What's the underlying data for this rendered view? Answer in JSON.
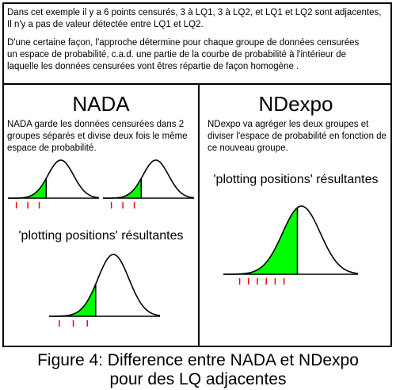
{
  "intro": {
    "line1": "Dans cet exemple il y a 6 points censurés, 3 à LQ1, 3 à LQ2, et LQ1 et LQ2 sont adjacentes,",
    "line2": "Il n'y a pas de valeur détectée entre LQ1 et LQ2.",
    "line3": "D'une certaine façon, l'approche détermine pour chaque groupe de données censurées",
    "line4": "un espace de probabilité, c.a.d. une partie de la courbe de probabilité à l'intérieur de",
    "line5": "laquelle les données censurées vont êtres répartie de façon homogène ."
  },
  "nada": {
    "title": "NADA",
    "desc1": "NADA garde les données censurées dans 2",
    "desc2": "groupes séparés et divise deux fois le même",
    "desc3": "espace de probabilité.",
    "result_label": "'plotting positions' résultantes"
  },
  "ndexpo": {
    "title": "NDexpo",
    "desc1": "NDexpo va agréger les deux groupes et",
    "desc2": "diviser l'espace de probabilité en fonction de",
    "desc3": "ce nouveau groupe.",
    "result_label": "'plotting positions' résultantes"
  },
  "caption": {
    "line1": "Figure 4: Difference entre NADA et NDexpo",
    "line2": "pour des LQ adjacentes"
  },
  "colors": {
    "fill": "#00ff00",
    "tick": "#ff0000",
    "stroke": "#000000"
  },
  "curves": [
    {
      "id": "nada-group-1",
      "ticks": 3,
      "fill_fraction": 0.42
    },
    {
      "id": "nada-group-2",
      "ticks": 3,
      "fill_fraction": 0.42
    },
    {
      "id": "nada-result",
      "ticks": 3,
      "fill_fraction": 0.42
    },
    {
      "id": "ndexpo-result",
      "ticks": 6,
      "fill_fraction": 0.55
    }
  ]
}
